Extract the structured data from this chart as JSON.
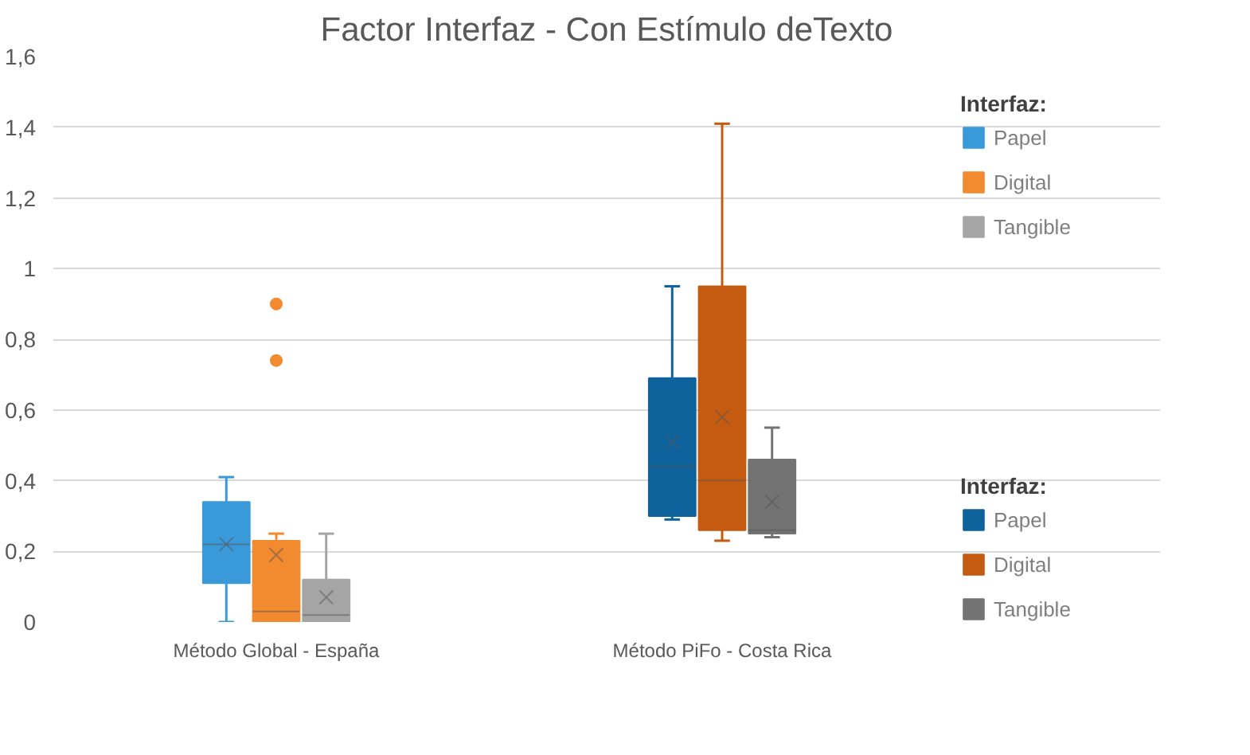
{
  "chart_data": {
    "type": "box",
    "title": "Factor Interfaz - Con Estímulo deTexto",
    "legend_title": "Interfaz:",
    "categories": [
      "Método Global - España",
      "Método PiFo - Costa Rica"
    ],
    "series": [
      {
        "name": "Papel",
        "color": "#3a9ad9",
        "boxes": [
          {
            "low": 0,
            "q1": 0.11,
            "median": 0.22,
            "q3": 0.34,
            "high": 0.41,
            "mean": 0.22
          },
          null
        ]
      },
      {
        "name": "Digital",
        "color": "#f28a30",
        "boxes": [
          {
            "low": 0,
            "q1": 0,
            "median": 0.03,
            "q3": 0.23,
            "high": 0.25,
            "mean": 0.19,
            "outliers": [
              0.74,
              0.9
            ]
          },
          null
        ]
      },
      {
        "name": "Tangible",
        "color": "#a5a5a5",
        "boxes": [
          {
            "low": 0,
            "q1": 0,
            "median": 0.02,
            "q3": 0.12,
            "high": 0.25,
            "mean": 0.07
          },
          null
        ]
      },
      {
        "name": "Papel",
        "color": "#0e639c",
        "boxes": [
          null,
          {
            "low": 0.29,
            "q1": 0.3,
            "median": 0.44,
            "q3": 0.69,
            "high": 0.95,
            "mean": 0.51
          }
        ]
      },
      {
        "name": "Digital",
        "color": "#c55a11",
        "boxes": [
          null,
          {
            "low": 0.23,
            "q1": 0.26,
            "median": 0.4,
            "q3": 0.95,
            "high": 1.41,
            "mean": 0.58
          }
        ]
      },
      {
        "name": "Tangible",
        "color": "#737373",
        "boxes": [
          null,
          {
            "low": 0.24,
            "q1": 0.25,
            "median": 0.26,
            "q3": 0.46,
            "high": 0.55,
            "mean": 0.34
          }
        ]
      }
    ],
    "ylim": [
      0,
      1.6
    ],
    "yticks": [
      0,
      {
        "value": 0.2,
        "label": "0,2"
      },
      {
        "value": 0.4,
        "label": "0,4"
      },
      {
        "value": 0.6,
        "label": "0,6"
      },
      {
        "value": 0.8,
        "label": "0,8"
      },
      1,
      {
        "value": 1.2,
        "label": "1,2"
      },
      {
        "value": 1.4,
        "label": "1,4"
      },
      {
        "value": 1.6,
        "label": "1,6"
      }
    ],
    "grid": "y",
    "legend": "right"
  }
}
